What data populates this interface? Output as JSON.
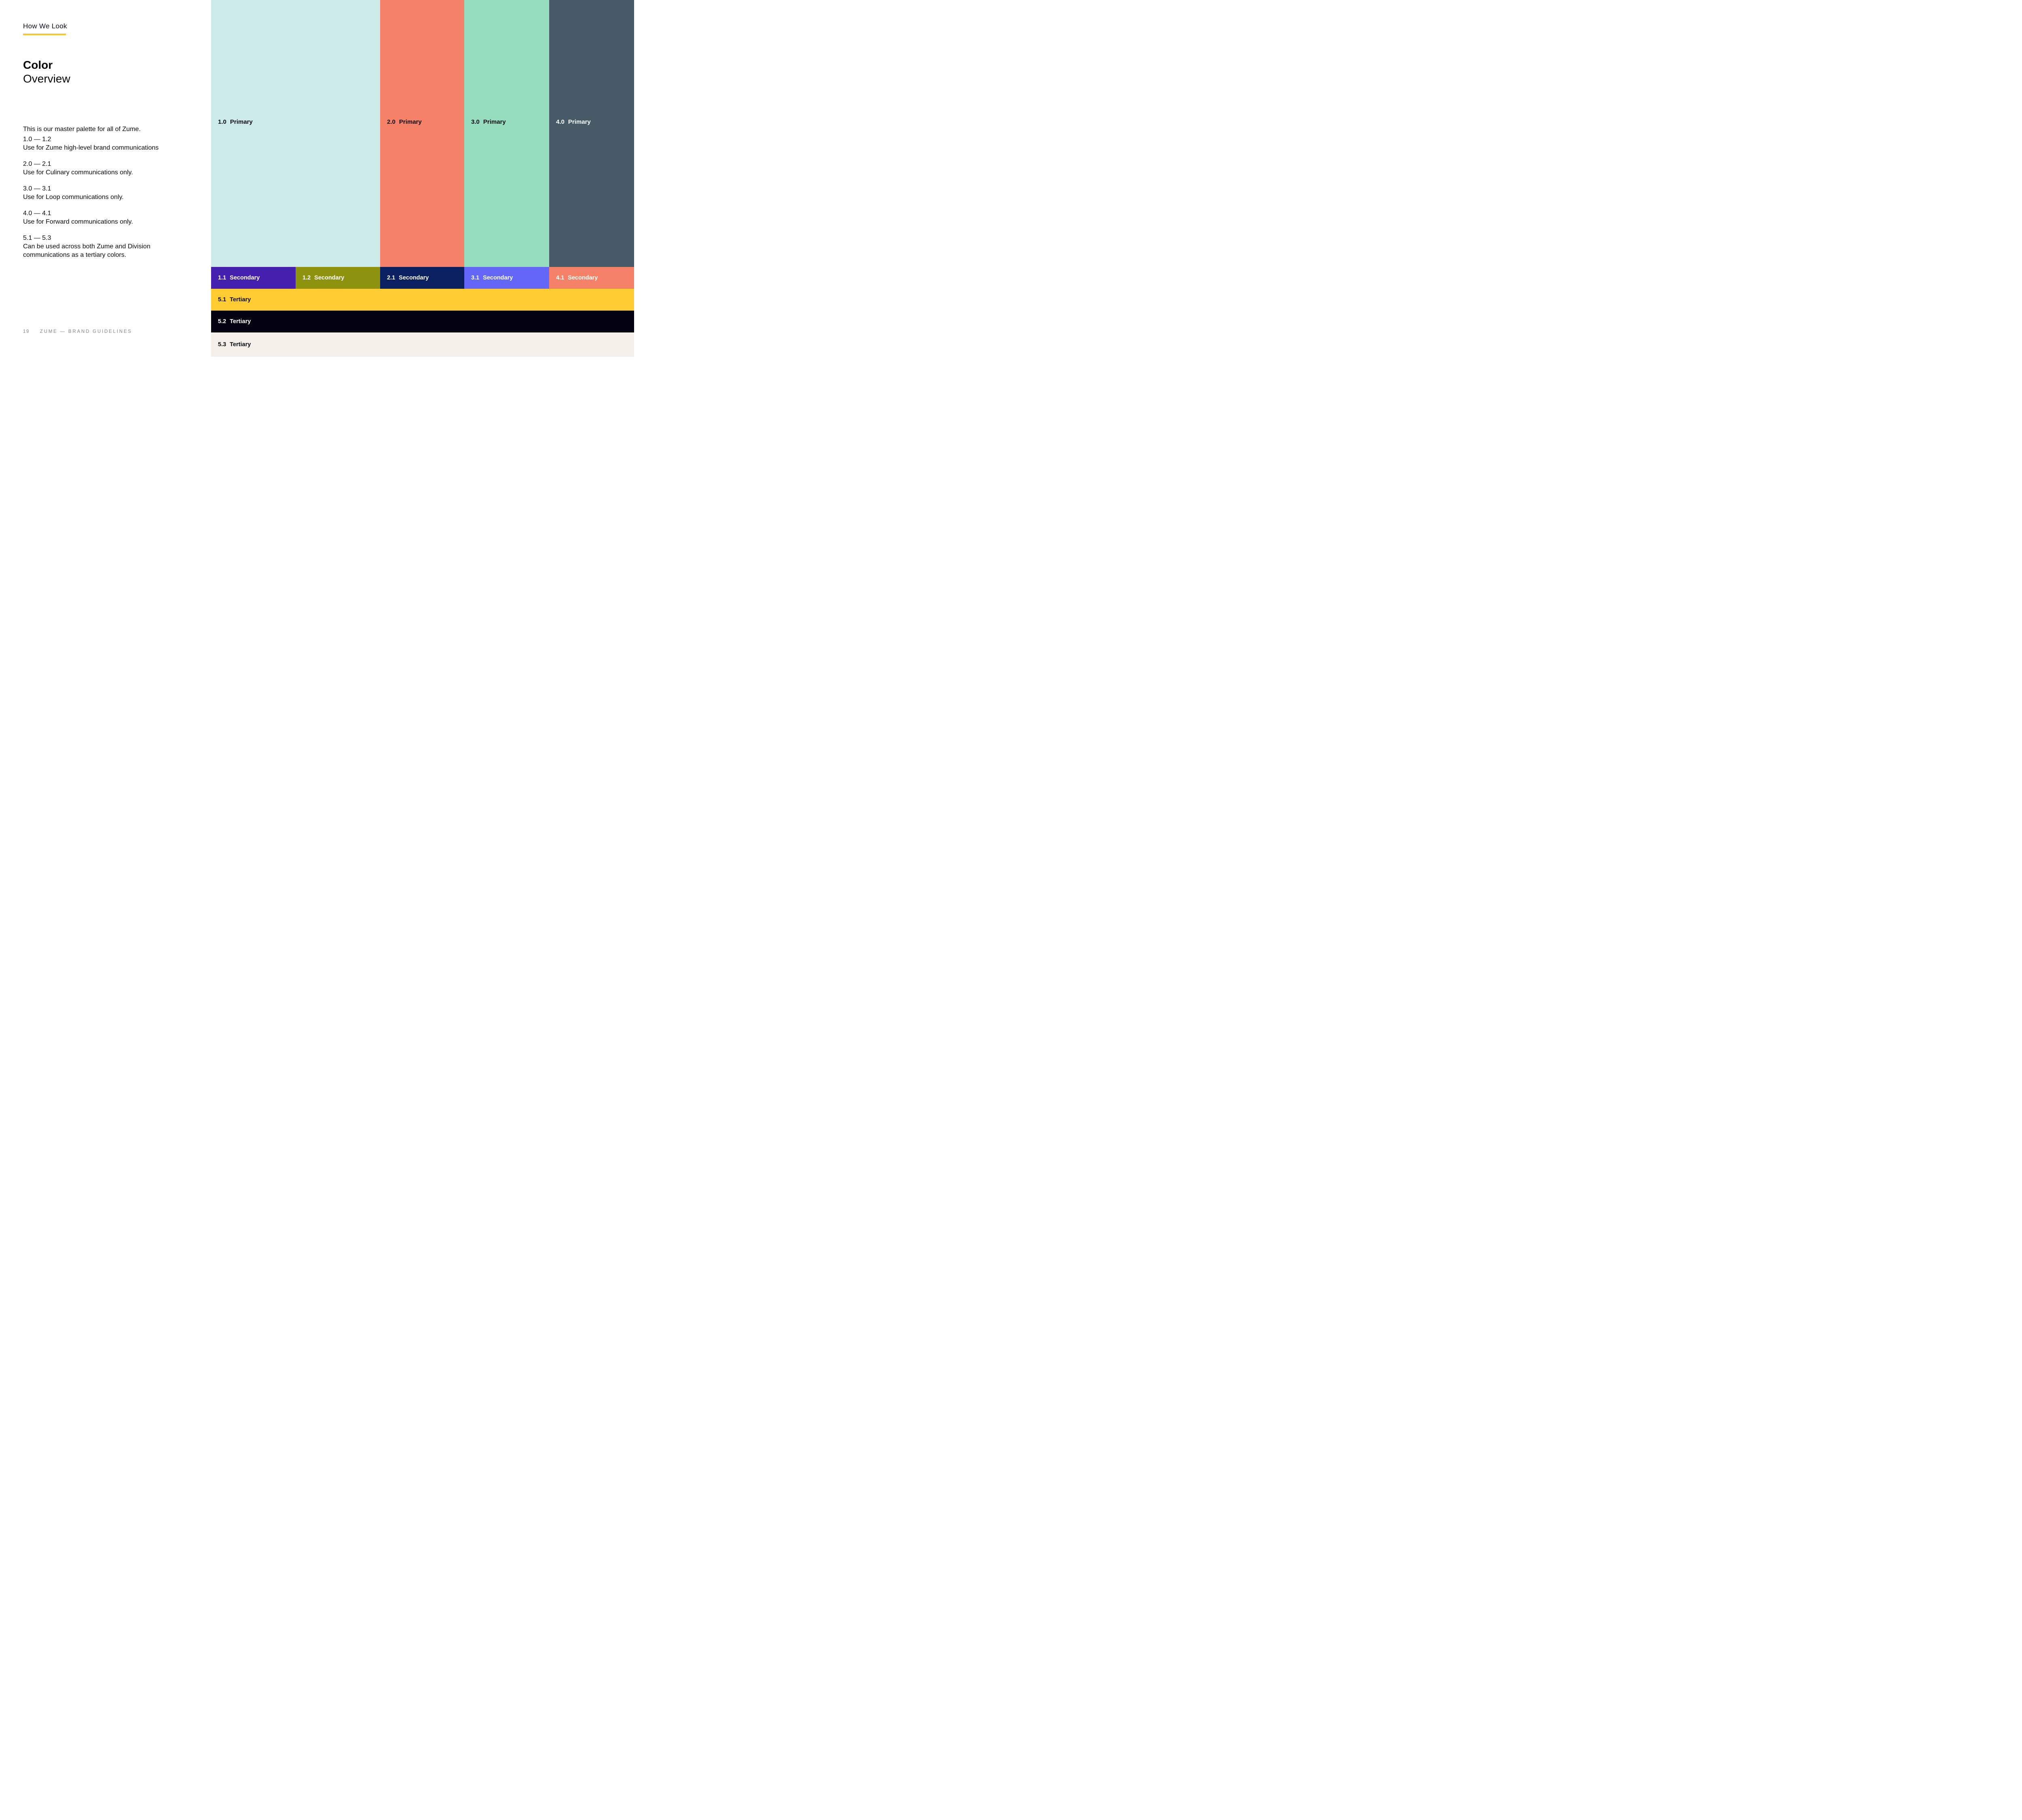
{
  "theme": {
    "accent_underline": "#fcc52f",
    "text_dark": "#0b0b12",
    "footer_gray": "#85858a"
  },
  "page": {
    "eyebrow": "How We Look",
    "title_bold": "Color",
    "title_regular": "Overview",
    "intro": "This is our master palette for all of Zume.",
    "notes": [
      {
        "range": "1.0 — 1.2",
        "desc": "Use for Zume high-level brand communications"
      },
      {
        "range": "2.0 — 2.1",
        "desc": "Use for Culinary communications only."
      },
      {
        "range": "3.0 — 3.1",
        "desc": "Use for Loop communications only."
      },
      {
        "range": "4.0 — 4.1",
        "desc": "Use for Forward communications only."
      },
      {
        "range": "5.1 — 5.3",
        "desc": "Can be used across both Zume and Division communications as a tertiary colors."
      }
    ],
    "footer": {
      "page_number": "19",
      "doc_title": "ZUME — BRAND GUIDELINES"
    }
  },
  "palette": {
    "primary": [
      {
        "code": "1.0",
        "label": "Primary",
        "color": "#cdeaeb",
        "text_color": "#0a0a14"
      },
      {
        "code": "2.0",
        "label": "Primary",
        "color": "#f58268",
        "text_color": "#0a0a14"
      },
      {
        "code": "3.0",
        "label": "Primary",
        "color": "#96ddbf",
        "text_color": "#0a0a14"
      },
      {
        "code": "4.0",
        "label": "Primary",
        "color": "#465a68",
        "text_color": "#ffffff"
      }
    ],
    "secondary": [
      {
        "code": "1.1",
        "label": "Secondary",
        "color": "#4520ae",
        "text_color": "#ffffff"
      },
      {
        "code": "1.2",
        "label": "Secondary",
        "color": "#8e930f",
        "text_color": "#ffffff"
      },
      {
        "code": "2.1",
        "label": "Secondary",
        "color": "#0a2061",
        "text_color": "#ffffff"
      },
      {
        "code": "3.1",
        "label": "Secondary",
        "color": "#6366f6",
        "text_color": "#ffffff"
      },
      {
        "code": "4.1",
        "label": "Secondary",
        "color": "#f58268",
        "text_color": "#ffffff"
      }
    ],
    "tertiary": [
      {
        "code": "5.1",
        "label": "Tertiary",
        "color": "#ffcd32",
        "text_color": "#0a0a14"
      },
      {
        "code": "5.2",
        "label": "Tertiary",
        "color": "#030110",
        "text_color": "#ffffff"
      },
      {
        "code": "5.3",
        "label": "Tertiary",
        "color": "#f4f0e9",
        "text_color": "#0a0a14"
      }
    ]
  }
}
